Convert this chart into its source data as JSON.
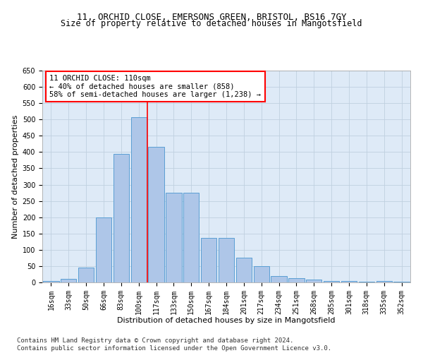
{
  "title_line1": "11, ORCHID CLOSE, EMERSONS GREEN, BRISTOL, BS16 7GY",
  "title_line2": "Size of property relative to detached houses in Mangotsfield",
  "xlabel": "Distribution of detached houses by size in Mangotsfield",
  "ylabel": "Number of detached properties",
  "footnote": "Contains HM Land Registry data © Crown copyright and database right 2024.\nContains public sector information licensed under the Open Government Licence v3.0.",
  "annotation_line1": "11 ORCHID CLOSE: 110sqm",
  "annotation_line2": "← 40% of detached houses are smaller (858)",
  "annotation_line3": "58% of semi-detached houses are larger (1,238) →",
  "bin_labels": [
    "16sqm",
    "33sqm",
    "50sqm",
    "66sqm",
    "83sqm",
    "100sqm",
    "117sqm",
    "133sqm",
    "150sqm",
    "167sqm",
    "184sqm",
    "201sqm",
    "217sqm",
    "234sqm",
    "251sqm",
    "268sqm",
    "285sqm",
    "301sqm",
    "318sqm",
    "335sqm",
    "352sqm"
  ],
  "bar_heights": [
    5,
    10,
    45,
    200,
    395,
    507,
    415,
    275,
    275,
    137,
    137,
    75,
    50,
    20,
    12,
    8,
    5,
    5,
    2,
    5,
    2
  ],
  "bar_color": "#aec6e8",
  "bar_edge_color": "#5a9fd4",
  "vline_color": "red",
  "ylim": [
    0,
    650
  ],
  "yticks": [
    0,
    50,
    100,
    150,
    200,
    250,
    300,
    350,
    400,
    450,
    500,
    550,
    600,
    650
  ],
  "grid_color": "#c0d0e0",
  "background_color": "#deeaf7",
  "annotation_box_color": "#ffffff",
  "annotation_box_edgecolor": "red",
  "title_fontsize": 9,
  "subtitle_fontsize": 8.5,
  "axis_label_fontsize": 8,
  "tick_fontsize": 7,
  "annotation_fontsize": 7.5,
  "footnote_fontsize": 6.5
}
